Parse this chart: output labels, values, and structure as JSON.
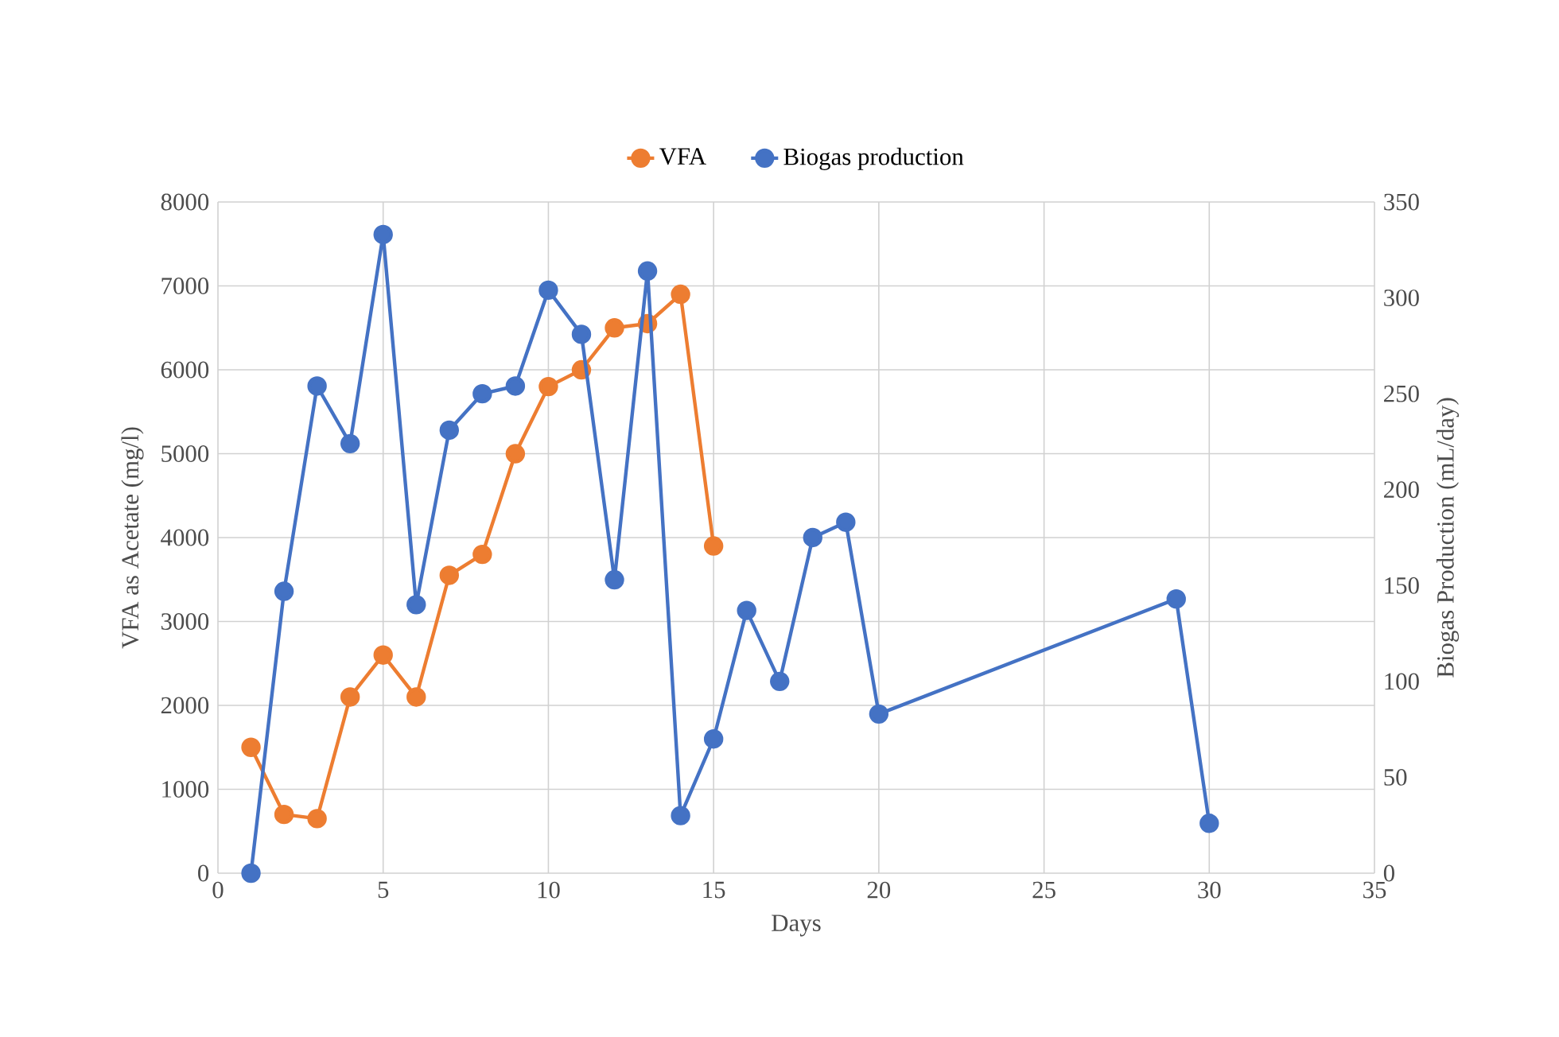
{
  "chart_data": {
    "type": "line",
    "xlabel": "Days",
    "ylabel": "VFA as Acetate (mg/l)",
    "y2label": "Biogas Production (mL/day)",
    "xlim": [
      0,
      35
    ],
    "xticks": [
      0,
      5,
      10,
      15,
      20,
      25,
      30,
      35
    ],
    "ylim": [
      0,
      8000
    ],
    "yticks": [
      0,
      1000,
      2000,
      3000,
      4000,
      5000,
      6000,
      7000,
      8000
    ],
    "y2lim": [
      0,
      350
    ],
    "y2ticks": [
      0,
      50,
      100,
      150,
      200,
      250,
      300,
      350
    ],
    "grid": true,
    "legend": "top",
    "marker": "circle",
    "line_style": "solid",
    "series": [
      {
        "name": "VFA",
        "color": "#ed7d31",
        "x": [
          1,
          2,
          3,
          4,
          5,
          6,
          7,
          8,
          9,
          10,
          11,
          12,
          13,
          14,
          15
        ],
        "values": [
          1500,
          700,
          650,
          2100,
          2600,
          2100,
          3550,
          3800,
          5000,
          5800,
          6000,
          6500,
          6550,
          6900,
          3900
        ]
      },
      {
        "name": "Biogas production",
        "color": "#4472c4",
        "axis": "y2",
        "x": [
          1,
          2,
          3,
          4,
          5,
          6,
          7,
          8,
          9,
          10,
          11,
          12,
          13,
          14,
          15,
          16,
          17,
          18,
          19,
          20,
          29,
          30
        ],
        "values": [
          0,
          147,
          254,
          224,
          333,
          140,
          231,
          250,
          254,
          304,
          281,
          153,
          314,
          30,
          70,
          137,
          100,
          175,
          183,
          83,
          143,
          26
        ]
      }
    ]
  }
}
